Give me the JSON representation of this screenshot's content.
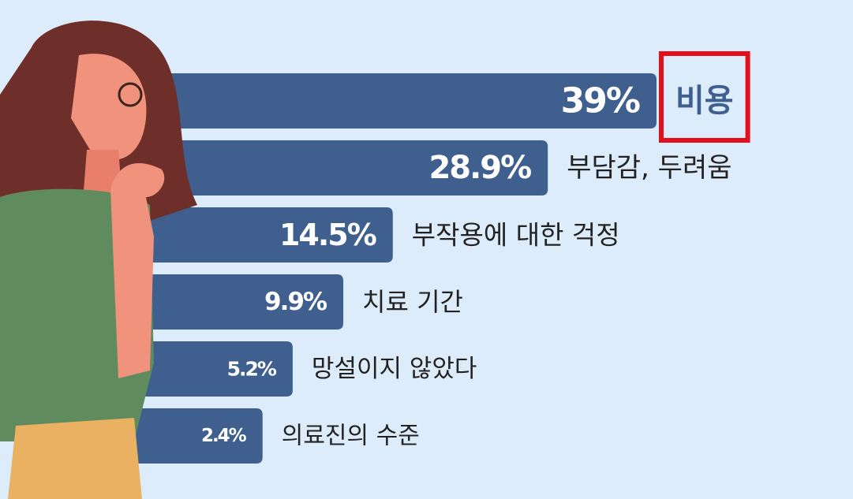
{
  "chart_data": {
    "type": "bar",
    "orientation": "horizontal",
    "categories": [
      "비용",
      "부담감, 두려움",
      "부작용에 대한 걱정",
      "치료 기간",
      "망설이지 않았다",
      "의료진의 수준"
    ],
    "values": [
      39,
      28.9,
      14.5,
      9.9,
      5.2,
      2.4
    ],
    "value_labels": [
      "39%",
      "28.9%",
      "14.5%",
      "9.9%",
      "5.2%",
      "2.4%"
    ],
    "color": "#3f5f8e",
    "highlight": {
      "index": 0,
      "color": "#e3101b",
      "text_color": "#3f5f8e"
    }
  }
}
